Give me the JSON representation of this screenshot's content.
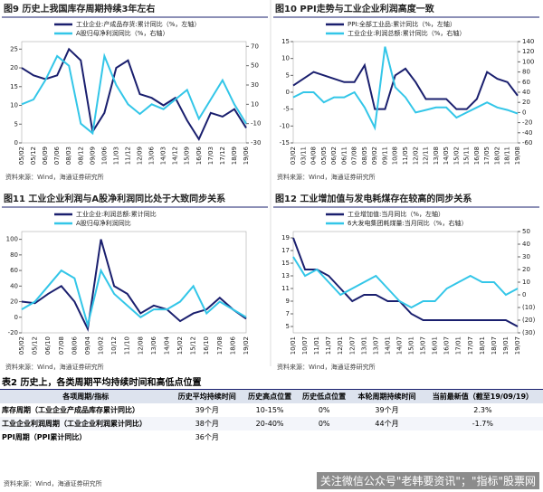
{
  "chart_data": [
    {
      "type": "line",
      "title": "图9 历史上我国库存周期持续3年左右",
      "categories": [
        "05/02",
        "05/12",
        "06/09",
        "07/06",
        "08/03",
        "08/12",
        "09/09",
        "10/06",
        "11/03",
        "11/12",
        "12/09",
        "13/06",
        "14/03",
        "14/12",
        "15/09",
        "16/06",
        "17/03",
        "17/12",
        "18/09",
        "19/06"
      ],
      "series": [
        {
          "name": "工业企业:产成品存货:累计同比（%，左轴）",
          "color": "#1a1f6e",
          "values": [
            20,
            18,
            17,
            18,
            25,
            22,
            3,
            8,
            20,
            22,
            13,
            12,
            10,
            12,
            6,
            1,
            8,
            7,
            9,
            4
          ]
        },
        {
          "name": "A股归母净利润同比（%，右轴）",
          "color": "#33c6e8",
          "axis": "y2",
          "values": [
            10,
            15,
            35,
            60,
            50,
            -10,
            -20,
            60,
            30,
            10,
            0,
            10,
            5,
            15,
            25,
            -5,
            15,
            35,
            10,
            -10
          ]
        }
      ],
      "ylim": [
        0,
        27
      ],
      "yticks": [
        0,
        5,
        10,
        15,
        20,
        25
      ],
      "y2lim": [
        -30,
        75
      ],
      "y2ticks": [
        -30,
        -10,
        10,
        30,
        50,
        70
      ],
      "source": "资料来源：Wind，海通证券研究所"
    },
    {
      "type": "line",
      "title": "图10 PPI走势与工业企业利润高度一致",
      "categories": [
        "03/02",
        "03/11",
        "04/08",
        "05/05",
        "06/02",
        "06/11",
        "07/08",
        "08/05",
        "09/02",
        "09/11",
        "10/08",
        "11/05",
        "12/02",
        "12/11",
        "13/08",
        "14/05",
        "15/02",
        "15/11",
        "16/08",
        "17/05",
        "18/02",
        "18/11",
        "19/08"
      ],
      "series": [
        {
          "name": "PPI:全部工业品:累计同比（%，左轴）",
          "color": "#1a1f6e",
          "values": [
            2,
            4,
            6,
            5,
            4,
            3,
            3,
            8,
            -5,
            -5,
            5,
            7,
            3,
            -2,
            -2,
            -2,
            -5,
            -5,
            -2,
            6,
            4,
            3,
            -1
          ]
        },
        {
          "name": "工业企业:利润总额:累计同比（%，右轴）",
          "color": "#33c6e8",
          "axis": "y2",
          "values": [
            30,
            40,
            40,
            20,
            30,
            30,
            40,
            10,
            -30,
            130,
            50,
            30,
            0,
            5,
            10,
            10,
            -10,
            0,
            10,
            20,
            10,
            5,
            -2
          ]
        }
      ],
      "ylim": [
        -15,
        15
      ],
      "yticks": [
        -15,
        -10,
        -5,
        0,
        5,
        10,
        15
      ],
      "y2lim": [
        -60,
        140
      ],
      "y2ticks": [
        -60,
        -40,
        -20,
        0,
        20,
        40,
        60,
        80,
        100,
        120,
        140
      ],
      "source": "资料来源：Wind，海通证券研究所"
    },
    {
      "type": "line",
      "title": "图11 工业企业利润与A股净利润同比处于大致同步关系",
      "categories": [
        "05/02",
        "05/12",
        "06/10",
        "07/08",
        "08/06",
        "09/04",
        "10/02",
        "10/12",
        "11/10",
        "12/08",
        "13/06",
        "14/04",
        "15/02",
        "15/12",
        "16/10",
        "17/08",
        "18/06",
        "19/02"
      ],
      "series": [
        {
          "name": "工业企业:利润总额:累计同比",
          "color": "#1a1f6e",
          "values": [
            20,
            18,
            30,
            40,
            20,
            -15,
            100,
            40,
            30,
            5,
            15,
            10,
            -5,
            5,
            10,
            25,
            10,
            -2
          ]
        },
        {
          "name": "A股归母净利润同比",
          "color": "#33c6e8",
          "values": [
            10,
            20,
            40,
            60,
            50,
            -10,
            60,
            30,
            15,
            0,
            10,
            10,
            20,
            40,
            5,
            20,
            10,
            0
          ]
        }
      ],
      "ylim": [
        -20,
        110
      ],
      "yticks": [
        -20,
        0,
        20,
        40,
        60,
        80,
        100
      ],
      "source": "资料来源：Wind，海通证券研究所"
    },
    {
      "type": "line",
      "title": "图12 工业增加值与发电耗煤存在较高的同步关系",
      "categories": [
        "10/01",
        "10/07",
        "11/01",
        "11/07",
        "12/01",
        "12/07",
        "13/01",
        "13/07",
        "14/01",
        "14/07",
        "15/01",
        "15/07",
        "16/01",
        "16/07",
        "17/01",
        "17/07",
        "18/01",
        "18/07",
        "19/01",
        "19/07"
      ],
      "series": [
        {
          "name": "工业增加值:当月同比（%，左轴）",
          "color": "#1a1f6e",
          "values": [
            19,
            14,
            14,
            13,
            11,
            9,
            10,
            10,
            9,
            9,
            7,
            6,
            6,
            6,
            6,
            6,
            6,
            6,
            6,
            5
          ]
        },
        {
          "name": "6大发电集团耗煤量:当月同比（%，右轴）",
          "color": "#33c6e8",
          "axis": "y2",
          "values": [
            30,
            15,
            20,
            10,
            0,
            5,
            10,
            15,
            5,
            -5,
            -10,
            -5,
            -5,
            5,
            10,
            15,
            10,
            10,
            0,
            5
          ]
        }
      ],
      "ylim": [
        4,
        20
      ],
      "yticks": [
        5,
        7,
        9,
        11,
        13,
        15,
        17,
        19
      ],
      "y2lim": [
        -30,
        50
      ],
      "y2ticks": [
        {
          "value": -30,
          "label": "(30)"
        },
        {
          "value": -20,
          "label": "(20)"
        },
        {
          "value": -10,
          "label": "(10)"
        },
        0,
        10,
        20,
        30,
        40,
        50
      ],
      "source": "资料来源：Wind，海通证券研究所"
    }
  ],
  "table": {
    "title": "表2 历史上，各类周期平均持续时间和高低点位置",
    "header": [
      "各项周期/指标",
      "历史平均持续时间",
      "历史高点位置",
      "历史低点位置",
      "本轮周期持续时间",
      "当前最新值（截至19/09/19）"
    ],
    "rows": [
      [
        "库存周期（工业企业产成品库存累计同比）",
        "39个月",
        "10-15%",
        "0%",
        "39个月",
        "2.3%"
      ],
      [
        "工业企业利润周期（工业企业利润累计同比）",
        "38个月",
        "20-40%",
        "0%",
        "44个月",
        "-1.7%"
      ],
      [
        "PPI周期（PPI累计同比）",
        "36个月"
      ]
    ],
    "source": "资料来源：Wind，海通证券研究所"
  },
  "watermark": "关注微信公众号\"老韩要资讯\"；\"指标\"股票网"
}
